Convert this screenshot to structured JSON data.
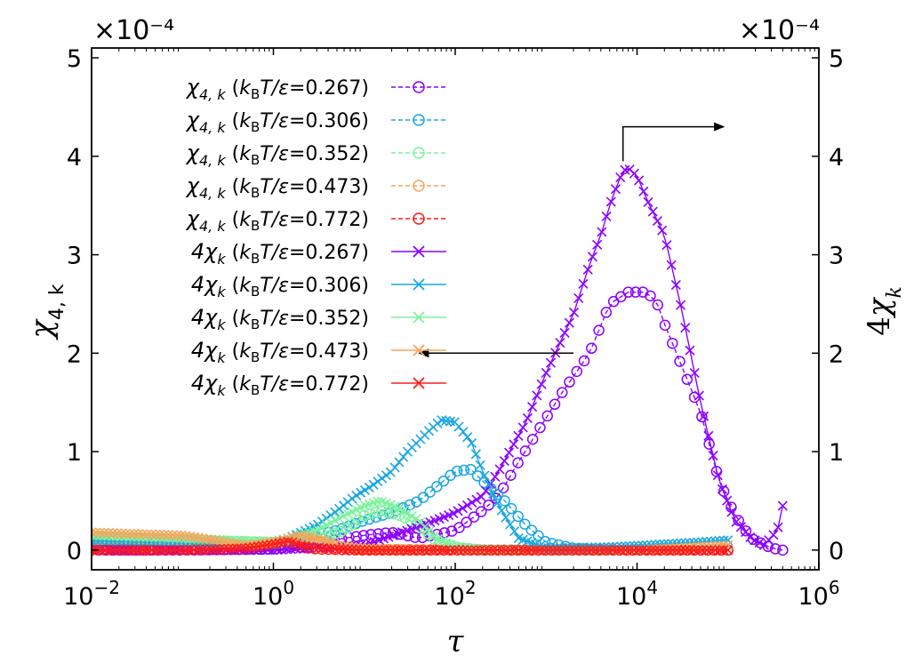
{
  "chart_data": {
    "type": "line",
    "x_scale": "log",
    "xlim": [
      0.01,
      1000000
    ],
    "ylim_left": [
      -0.2,
      5.1
    ],
    "ylim_right": [
      -0.2,
      5.1
    ],
    "xlabel": "τ",
    "ylabel_left": "χ4,k",
    "ylabel_right": "4χk",
    "multiplier_left": "×10⁻⁴",
    "multiplier_right": "×10⁻⁴",
    "x_ticks": [
      {
        "value": 0.01,
        "base": "10",
        "exp": "−2"
      },
      {
        "value": 1,
        "base": "10",
        "exp": "0"
      },
      {
        "value": 100,
        "base": "10",
        "exp": "2"
      },
      {
        "value": 10000,
        "base": "10",
        "exp": "4"
      },
      {
        "value": 1000000,
        "base": "10",
        "exp": "6"
      }
    ],
    "y_ticks": [
      {
        "value": 0,
        "label": "0"
      },
      {
        "value": 1,
        "label": "1"
      },
      {
        "value": 2,
        "label": "2"
      },
      {
        "value": 3,
        "label": "3"
      },
      {
        "value": 4,
        "label": "4"
      },
      {
        "value": 5,
        "label": "5"
      }
    ],
    "annotations": [
      {
        "direction": "right",
        "text": "",
        "points": [
          [
            7000,
            3.95
          ],
          [
            7000,
            4.3
          ],
          [
            90000,
            4.3
          ]
        ]
      },
      {
        "direction": "left",
        "text": "",
        "points": [
          [
            2000,
            2.0
          ],
          [
            40,
            2.0
          ]
        ]
      }
    ],
    "series": [
      {
        "name": "χ4,k (kBT/ε=0.267)",
        "legend_prefix": "χ",
        "legend_sub": "4, k",
        "legend_temp": "=0.267)",
        "marker": "o",
        "linestyle": "dashed",
        "color": "#8B00FF",
        "x": [
          0.01,
          0.1,
          1,
          10,
          20,
          40,
          100,
          200,
          300,
          500,
          800,
          1500,
          3000,
          5000,
          8000,
          12000,
          16000,
          20000,
          30000,
          50000,
          80000,
          120000,
          180000,
          300000,
          400000
        ],
        "y": [
          0.0,
          0.0,
          0.01,
          0.15,
          0.18,
          0.12,
          0.2,
          0.4,
          0.55,
          0.9,
          1.2,
          1.6,
          2.0,
          2.5,
          2.62,
          2.62,
          2.55,
          2.3,
          1.9,
          1.4,
          0.7,
          0.35,
          0.12,
          0.02,
          0.0
        ]
      },
      {
        "name": "χ4,k (kBT/ε=0.306)",
        "legend_prefix": "χ",
        "legend_sub": "4, k",
        "legend_temp": "=0.306)",
        "marker": "o",
        "linestyle": "dashed",
        "color": "#1AA7E0",
        "x": [
          0.01,
          0.1,
          1,
          5,
          10,
          20,
          40,
          70,
          100,
          150,
          200,
          350,
          600,
          1000,
          2000,
          5000,
          20000,
          100000
        ],
        "y": [
          0.05,
          0.05,
          0.05,
          0.2,
          0.3,
          0.38,
          0.5,
          0.68,
          0.8,
          0.82,
          0.7,
          0.5,
          0.25,
          0.08,
          0.02,
          0.0,
          0.0,
          0.0
        ]
      },
      {
        "name": "χ4,k (kBT/ε=0.352)",
        "legend_prefix": "χ",
        "legend_sub": "4, k",
        "legend_temp": "=0.352)",
        "marker": "o",
        "linestyle": "dashed",
        "color": "#7DF29E",
        "x": [
          0.01,
          0.1,
          1,
          3,
          6,
          10,
          15,
          25,
          40,
          60,
          100,
          200,
          1000,
          10000
        ],
        "y": [
          0.13,
          0.1,
          0.08,
          0.1,
          0.2,
          0.35,
          0.4,
          0.35,
          0.25,
          0.1,
          0.03,
          0.0,
          0.0,
          0.0
        ]
      },
      {
        "name": "χ4,k (kBT/ε=0.473)",
        "legend_prefix": "χ",
        "legend_sub": "4, k",
        "legend_temp": "=0.473)",
        "marker": "o",
        "linestyle": "dashed",
        "color": "#F5A65B",
        "x": [
          0.01,
          0.1,
          0.5,
          1,
          2,
          3,
          5,
          10,
          100,
          1000,
          10000,
          100000
        ],
        "y": [
          0.12,
          0.1,
          0.04,
          0.05,
          0.12,
          0.1,
          0.04,
          0.01,
          0.0,
          0.0,
          0.0,
          0.0
        ]
      },
      {
        "name": "χ4,k (kBT/ε=0.772)",
        "legend_prefix": "χ",
        "legend_sub": "4, k",
        "legend_temp": "=0.772)",
        "marker": "o",
        "linestyle": "dashed",
        "color": "#FF1A1A",
        "x": [
          0.01,
          0.1,
          0.5,
          1,
          1.5,
          2,
          3,
          10,
          100,
          1000,
          10000,
          100000
        ],
        "y": [
          0.0,
          0.0,
          0.01,
          0.05,
          0.06,
          0.03,
          0.01,
          0.0,
          0.0,
          0.0,
          0.0,
          0.0
        ]
      },
      {
        "name": "4χk (kBT/ε=0.267)",
        "legend_prefix": "4χ",
        "legend_sub": "k",
        "legend_temp": "=0.267)",
        "marker": "x",
        "linestyle": "solid",
        "color": "#8B00FF",
        "x": [
          0.01,
          0.1,
          1,
          10,
          30,
          60,
          100,
          200,
          300,
          600,
          1000,
          2000,
          3000,
          4000,
          5000,
          6000,
          7000,
          8000,
          10000,
          13000,
          20000,
          30000,
          50000,
          80000,
          120000,
          180000,
          250000,
          350000,
          400000
        ],
        "y": [
          0.0,
          0.0,
          0.0,
          0.05,
          0.2,
          0.3,
          0.38,
          0.55,
          0.8,
          1.3,
          1.8,
          2.4,
          2.9,
          3.2,
          3.5,
          3.7,
          3.85,
          3.88,
          3.8,
          3.55,
          3.2,
          2.5,
          1.5,
          0.7,
          0.3,
          0.12,
          0.05,
          0.2,
          0.45
        ]
      },
      {
        "name": "4χk (kBT/ε=0.306)",
        "legend_prefix": "4χ",
        "legend_sub": "k",
        "legend_temp": "=0.306)",
        "marker": "x",
        "linestyle": "solid",
        "color": "#1AA7E0",
        "x": [
          0.01,
          0.1,
          1,
          3,
          5,
          8,
          12,
          20,
          30,
          50,
          70,
          100,
          150,
          200,
          300,
          500,
          1000,
          5000,
          50000,
          100000
        ],
        "y": [
          0.1,
          0.08,
          0.05,
          0.25,
          0.4,
          0.55,
          0.65,
          0.8,
          1.0,
          1.2,
          1.32,
          1.3,
          1.1,
          0.8,
          0.45,
          0.12,
          0.02,
          0.03,
          0.08,
          0.1
        ]
      },
      {
        "name": "4χk (kBT/ε=0.352)",
        "legend_prefix": "4χ",
        "legend_sub": "k",
        "legend_temp": "=0.352)",
        "marker": "x",
        "linestyle": "solid",
        "color": "#7DF29E",
        "x": [
          0.01,
          0.1,
          1,
          3,
          6,
          10,
          15,
          25,
          40,
          60,
          100,
          200,
          1000,
          10000,
          100000
        ],
        "y": [
          0.15,
          0.12,
          0.08,
          0.2,
          0.35,
          0.45,
          0.5,
          0.42,
          0.3,
          0.12,
          0.03,
          0.01,
          0.0,
          0.0,
          0.05
        ]
      },
      {
        "name": "4χk (kBT/ε=0.473)",
        "legend_prefix": "4χ",
        "legend_sub": "k",
        "legend_temp": "=0.473)",
        "marker": "x",
        "linestyle": "solid",
        "color": "#F5A65B",
        "x": [
          0.01,
          0.1,
          0.5,
          1,
          2,
          3,
          5,
          10,
          100,
          1000,
          10000,
          100000
        ],
        "y": [
          0.18,
          0.15,
          0.05,
          0.08,
          0.15,
          0.12,
          0.05,
          0.02,
          0.0,
          0.0,
          0.0,
          0.05
        ]
      },
      {
        "name": "4χk (kBT/ε=0.772)",
        "legend_prefix": "4χ",
        "legend_sub": "k",
        "legend_temp": "=0.772)",
        "marker": "x",
        "linestyle": "solid",
        "color": "#FF1A1A",
        "x": [
          0.01,
          0.1,
          0.5,
          1,
          1.5,
          2,
          3,
          10,
          100,
          1000,
          10000,
          100000
        ],
        "y": [
          0.0,
          0.0,
          0.02,
          0.06,
          0.09,
          0.05,
          0.02,
          0.0,
          0.0,
          0.0,
          0.0,
          0.0
        ]
      }
    ]
  }
}
